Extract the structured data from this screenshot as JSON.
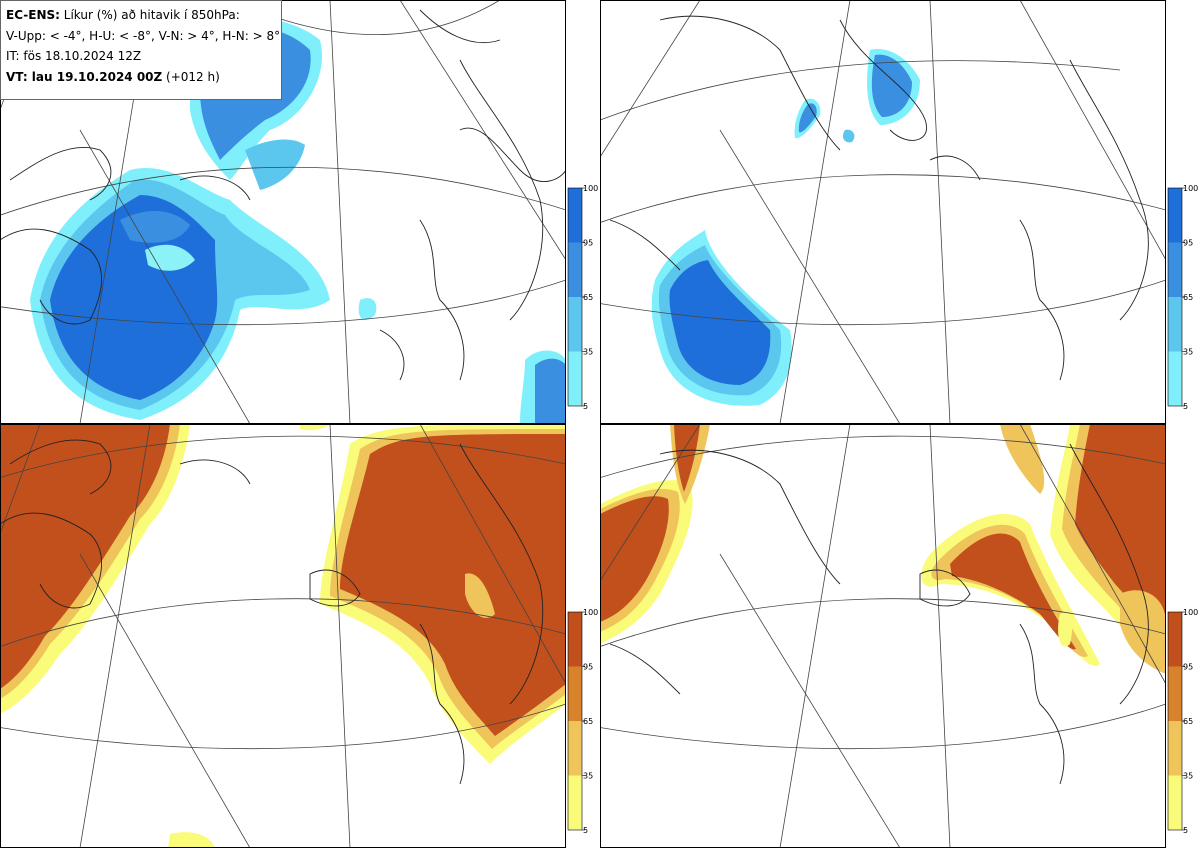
{
  "header": {
    "line1_bold": "EC-ENS:",
    "line1_rest": " Líkur (%) að hitavik í 850hPa:",
    "line2": "V-Upp: < -4°, H-U: < -8°, V-N: > 4°, H-N: > 8°",
    "line3": "IT: fös 18.10.2024 12Z",
    "line4_bold": "VT: lau 19.10.2024 00Z",
    "line4_rest": " (+012 h)"
  },
  "colorbars": {
    "ticks": [
      "100",
      "95",
      "65",
      "35",
      "5"
    ],
    "cold_colors": [
      "#1e6fd9",
      "#3a8fe0",
      "#5bc7ee",
      "#7ff0fb"
    ],
    "warm_colors": [
      "#c2501c",
      "#d8822c",
      "#efc45a",
      "#fbfb7a"
    ]
  },
  "panels": [
    {
      "id": "upper-left",
      "variable": "cold anomaly < -4°"
    },
    {
      "id": "upper-right",
      "variable": "cold anomaly < -8°"
    },
    {
      "id": "lower-left",
      "variable": "warm anomaly > 4°"
    },
    {
      "id": "lower-right",
      "variable": "warm anomaly > 8°"
    }
  ]
}
